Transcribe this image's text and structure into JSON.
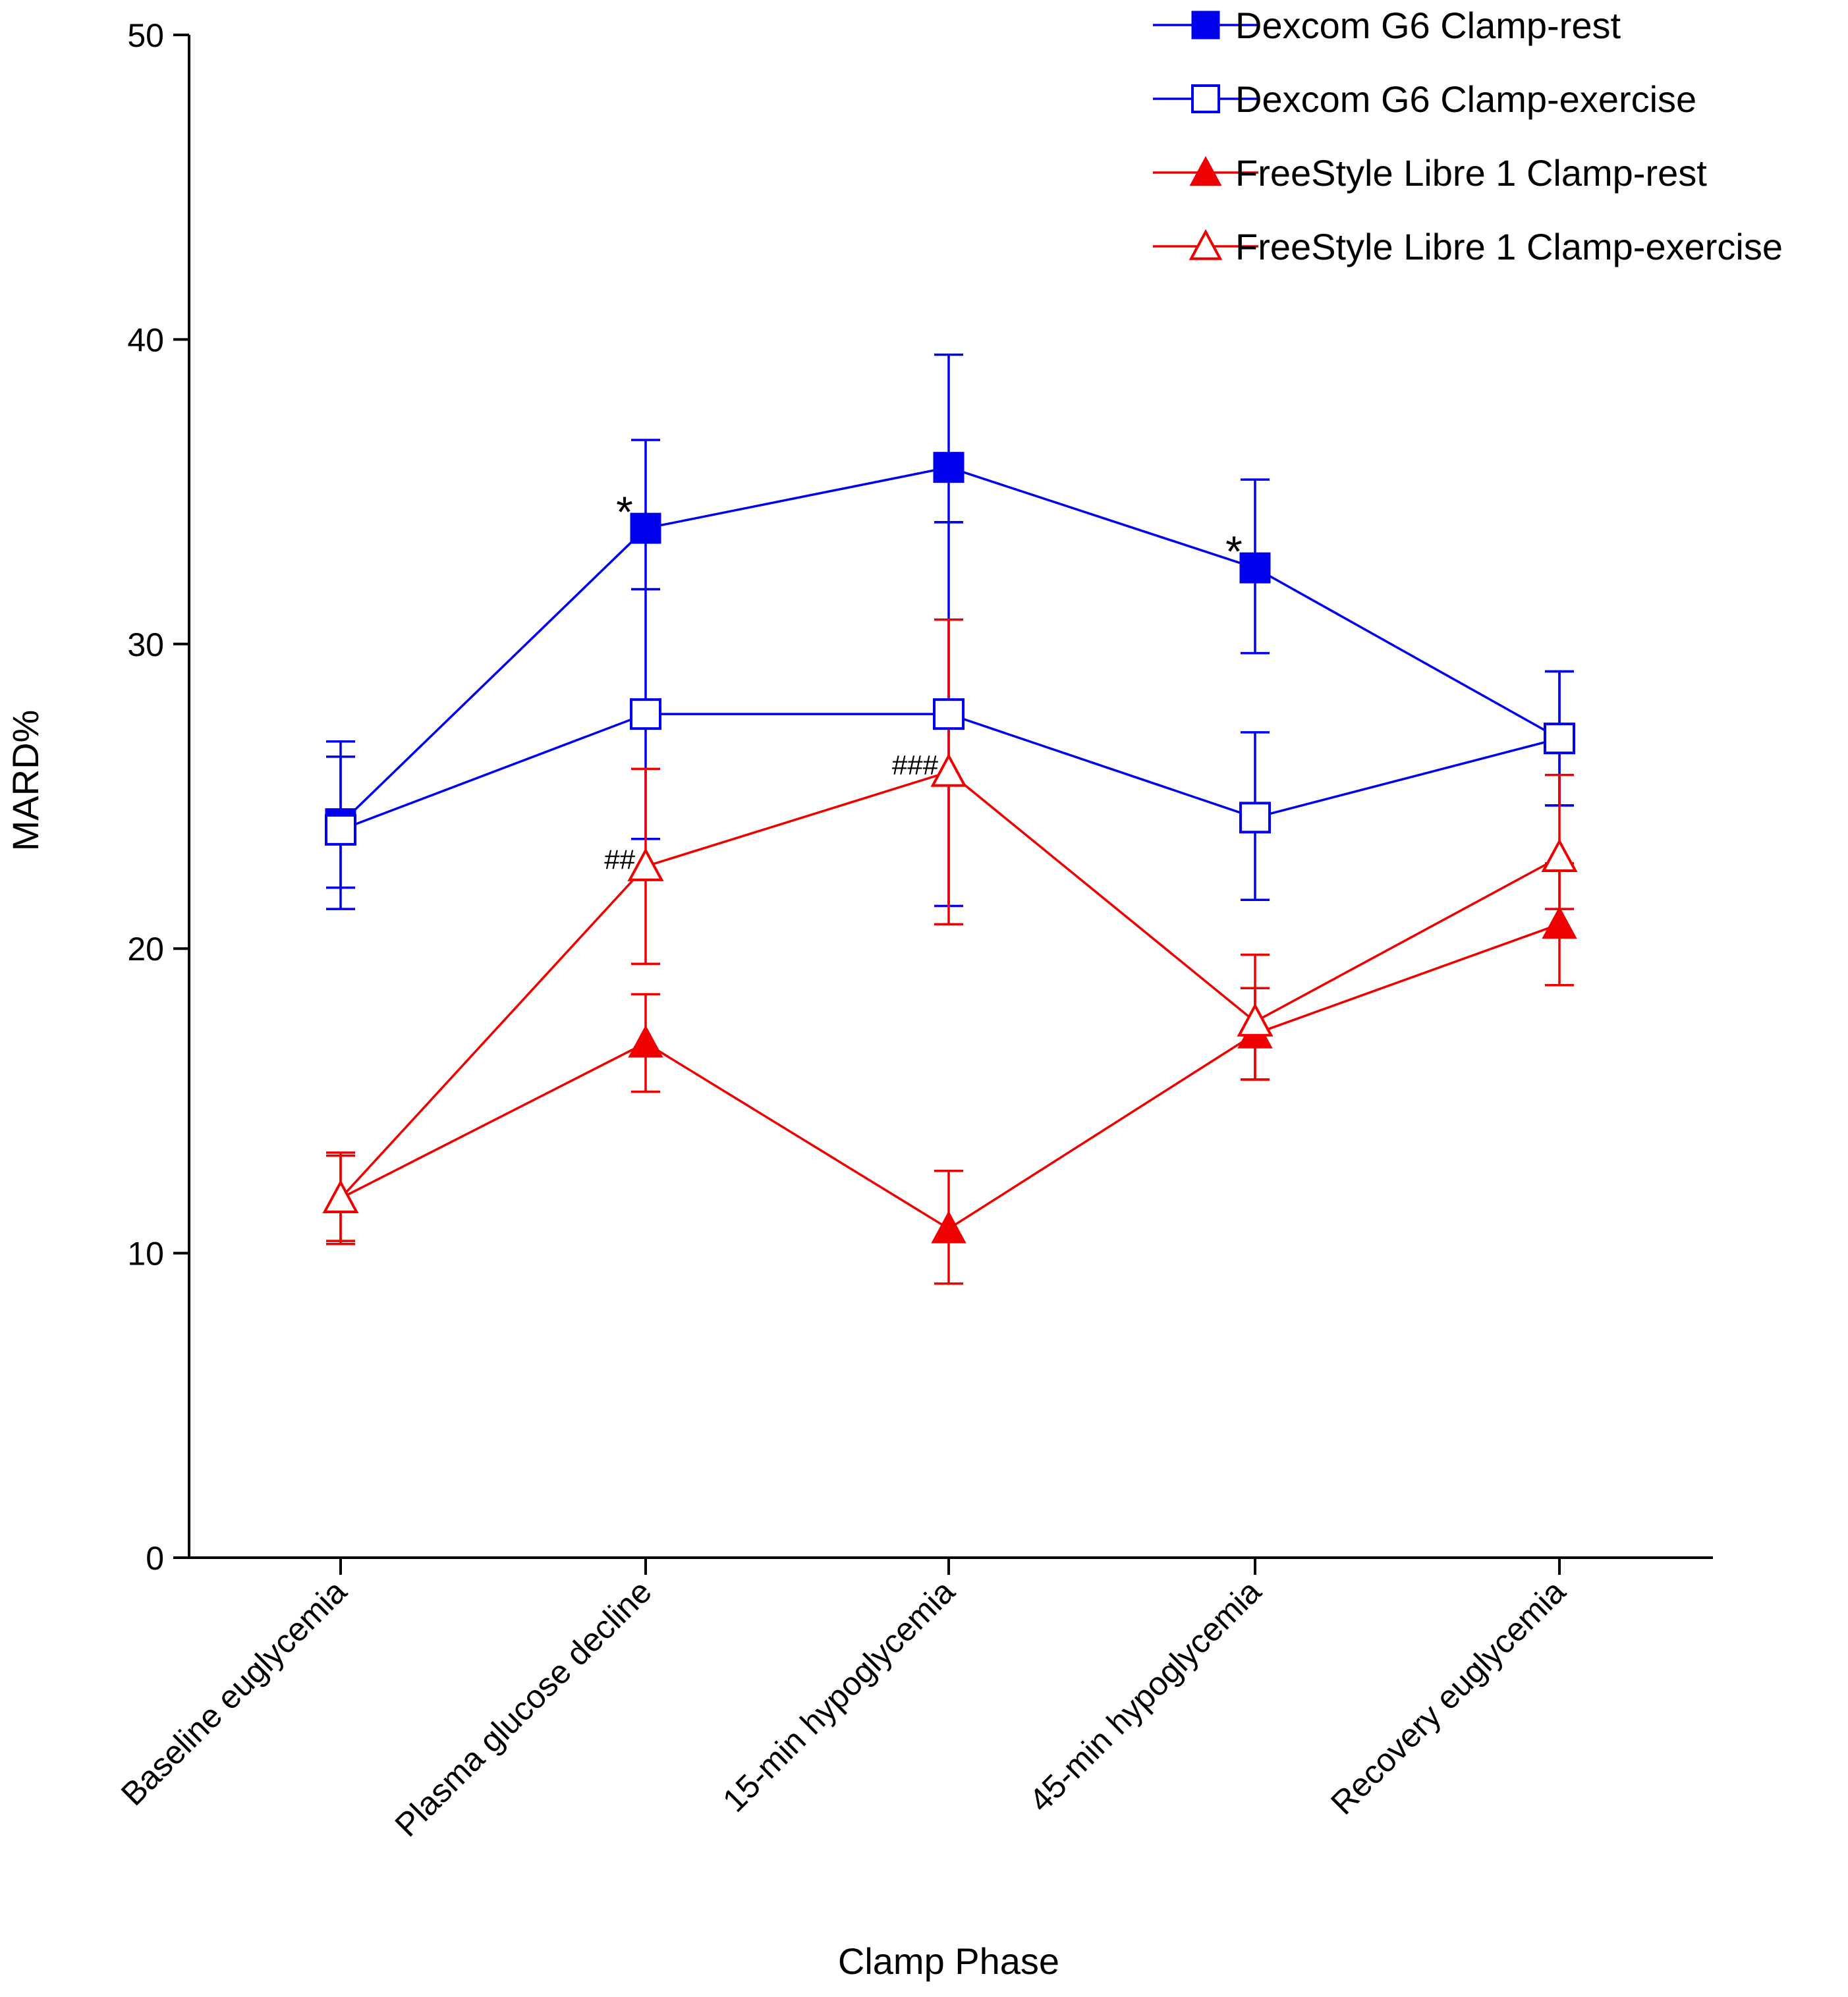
{
  "chart_data": {
    "type": "line",
    "title": "",
    "xlabel": "Clamp Phase",
    "ylabel": "MARD%",
    "ylim": [
      0,
      50
    ],
    "yticks": [
      0,
      10,
      20,
      30,
      40,
      50
    ],
    "grid": false,
    "legend_position": "top-right",
    "categories": [
      "Baseline euglycemia",
      "Plasma glucose decline",
      "15-min hypoglycemia",
      "45-min hypoglycemia",
      "Recovery euglycemia"
    ],
    "series": [
      {
        "name": "Dexcom G6 Clamp-rest",
        "color": "#0000ee",
        "marker": "square-filled",
        "values": [
          24.1,
          33.8,
          35.8,
          32.5,
          26.9
        ],
        "err_low": [
          2.1,
          2.0,
          1.8,
          2.8,
          2.2
        ],
        "err_high": [
          2.2,
          2.9,
          3.7,
          2.9,
          2.2
        ]
      },
      {
        "name": "Dexcom G6 Clamp-exercise",
        "color": "#0000ee",
        "marker": "square-open",
        "values": [
          23.9,
          27.7,
          27.7,
          24.3,
          26.9
        ],
        "err_low": [
          2.6,
          4.1,
          6.3,
          2.7,
          2.2
        ],
        "err_high": [
          2.9,
          4.1,
          6.3,
          2.8,
          2.2
        ]
      },
      {
        "name": "FreeStyle Libre 1 Clamp-rest",
        "color": "#ee0000",
        "marker": "triangle-filled",
        "values": [
          11.8,
          16.9,
          10.8,
          17.2,
          20.8
        ],
        "err_low": [
          1.5,
          1.6,
          1.8,
          1.5,
          2.0
        ],
        "err_high": [
          1.5,
          1.6,
          1.9,
          1.5,
          2.0
        ]
      },
      {
        "name": "FreeStyle Libre 1 Clamp-exercise",
        "color": "#ee0000",
        "marker": "triangle-open",
        "values": [
          11.8,
          22.7,
          25.8,
          17.6,
          23.0
        ],
        "err_low": [
          1.4,
          3.2,
          5.0,
          1.9,
          1.7
        ],
        "err_high": [
          1.4,
          3.2,
          5.0,
          2.2,
          2.7
        ]
      }
    ],
    "annotations": [
      {
        "text": "*",
        "category_index": 1,
        "near_series": "Dexcom G6 Clamp-rest"
      },
      {
        "text": "*",
        "category_index": 3,
        "near_series": "Dexcom G6 Clamp-rest"
      },
      {
        "text": "##",
        "category_index": 1,
        "near_series": "FreeStyle Libre 1 Clamp-exercise"
      },
      {
        "text": "###",
        "category_index": 2,
        "near_series": "FreeStyle Libre 1 Clamp-exercise"
      }
    ]
  }
}
